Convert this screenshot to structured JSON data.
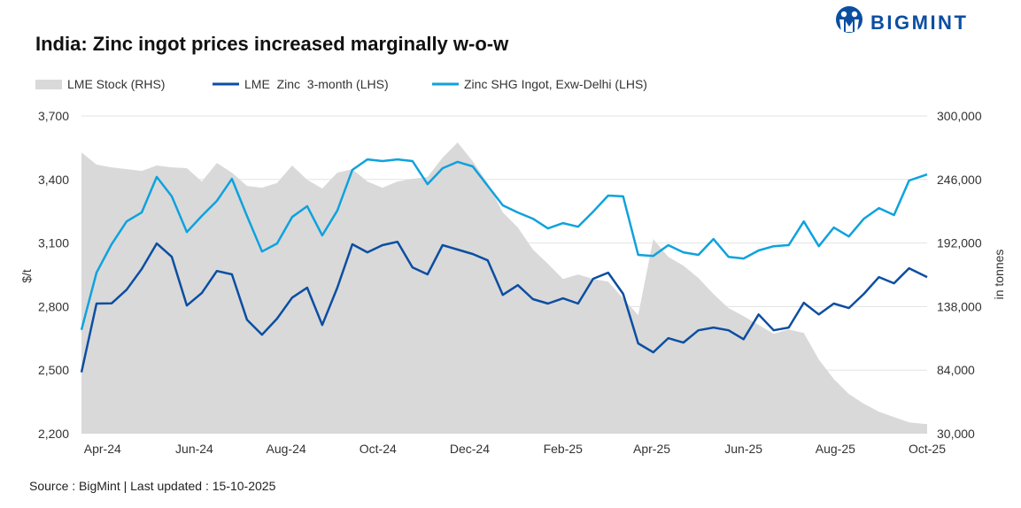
{
  "brand": {
    "logo_text": "BIGMINT",
    "color": "#0b4ea2"
  },
  "chart_data": {
    "type": "line+area",
    "title": "India: Zinc ingot prices increased marginally w-o-w",
    "source": "Source : BigMint | Last updated : 15-10-2025",
    "ylabel": "$/t",
    "y2label": "in tonnes",
    "ylim": [
      2200,
      3700
    ],
    "y2lim": [
      30000,
      300000
    ],
    "yticks": [
      "2,200",
      "2,500",
      "2,800",
      "3,100",
      "3,400",
      "3,700"
    ],
    "y2ticks": [
      "30,000",
      "84,000",
      "138,000",
      "192,000",
      "246,000",
      "300,000"
    ],
    "xlim": [
      "2024-04-01",
      "2025-10-15"
    ],
    "xticks": [
      {
        "date": "2024-04-15",
        "label": "Apr-24"
      },
      {
        "date": "2024-06-15",
        "label": "Jun-24"
      },
      {
        "date": "2024-08-15",
        "label": "Aug-24"
      },
      {
        "date": "2024-10-15",
        "label": "Oct-24"
      },
      {
        "date": "2024-12-15",
        "label": "Dec-24"
      },
      {
        "date": "2025-02-15",
        "label": "Feb-25"
      },
      {
        "date": "2025-04-15",
        "label": "Apr-25"
      },
      {
        "date": "2025-06-15",
        "label": "Jun-25"
      },
      {
        "date": "2025-08-15",
        "label": "Aug-25"
      },
      {
        "date": "2025-10-15",
        "label": "Oct-25"
      }
    ],
    "grid": true,
    "legend_position": "top-left",
    "x": [
      "2024-04-01",
      "2024-04-11",
      "2024-04-21",
      "2024-05-01",
      "2024-05-11",
      "2024-05-21",
      "2024-05-31",
      "2024-06-10",
      "2024-06-20",
      "2024-06-30",
      "2024-07-10",
      "2024-07-20",
      "2024-07-30",
      "2024-08-09",
      "2024-08-19",
      "2024-08-29",
      "2024-09-08",
      "2024-09-18",
      "2024-09-28",
      "2024-10-08",
      "2024-10-18",
      "2024-10-28",
      "2024-11-07",
      "2024-11-17",
      "2024-11-27",
      "2024-12-07",
      "2024-12-17",
      "2024-12-27",
      "2025-01-06",
      "2025-01-16",
      "2025-01-26",
      "2025-02-05",
      "2025-02-15",
      "2025-02-25",
      "2025-03-07",
      "2025-03-17",
      "2025-03-27",
      "2025-04-06",
      "2025-04-16",
      "2025-04-26",
      "2025-05-06",
      "2025-05-16",
      "2025-05-26",
      "2025-06-05",
      "2025-06-15",
      "2025-06-25",
      "2025-07-05",
      "2025-07-15",
      "2025-07-25",
      "2025-08-04",
      "2025-08-14",
      "2025-08-24",
      "2025-09-03",
      "2025-09-13",
      "2025-09-23",
      "2025-10-03",
      "2025-10-15"
    ],
    "series": [
      {
        "name": "LME Stock (RHS)",
        "axis": "right",
        "kind": "area",
        "color": "#d9d9d9",
        "values": [
          269000,
          258600,
          256300,
          254800,
          253300,
          257900,
          256300,
          255600,
          244300,
          260000,
          251800,
          240500,
          239000,
          243000,
          257900,
          245800,
          238300,
          251800,
          254800,
          244300,
          239000,
          244300,
          246600,
          248000,
          264600,
          277400,
          261600,
          242800,
          218000,
          205200,
          186400,
          174300,
          161500,
          165300,
          161500,
          159300,
          145000,
          130700,
          195400,
          180300,
          172800,
          162300,
          148700,
          136700,
          129900,
          122400,
          114900,
          118600,
          115600,
          93000,
          76500,
          63700,
          55400,
          48600,
          44100,
          39600,
          38100
        ]
      },
      {
        "name": "LME  Zinc  3-month (LHS)",
        "axis": "left",
        "kind": "line",
        "color": "#0b4ea2",
        "values": [
          2490,
          2814,
          2815,
          2880,
          2977,
          3098,
          3035,
          2805,
          2864,
          2968,
          2952,
          2738,
          2667,
          2743,
          2842,
          2889,
          2713,
          2889,
          3094,
          3056,
          3090,
          3106,
          2985,
          2952,
          3090,
          3069,
          3048,
          3018,
          2855,
          2901,
          2835,
          2814,
          2839,
          2814,
          2931,
          2960,
          2860,
          2626,
          2584,
          2651,
          2630,
          2688,
          2701,
          2688,
          2646,
          2763,
          2688,
          2701,
          2818,
          2763,
          2814,
          2793,
          2860,
          2939,
          2910,
          2981,
          2939
        ]
      },
      {
        "name": "Zinc SHG Ingot, Exw-Delhi (LHS)",
        "axis": "left",
        "kind": "line",
        "color": "#0ea2de",
        "values": [
          2690,
          2960,
          3094,
          3202,
          3244,
          3412,
          3320,
          3152,
          3228,
          3299,
          3403,
          3228,
          3060,
          3098,
          3223,
          3274,
          3136,
          3253,
          3445,
          3495,
          3487,
          3495,
          3487,
          3378,
          3453,
          3483,
          3462,
          3370,
          3278,
          3244,
          3215,
          3169,
          3194,
          3177,
          3248,
          3324,
          3320,
          3044,
          3039,
          3090,
          3056,
          3044,
          3119,
          3035,
          3027,
          3065,
          3085,
          3090,
          3202,
          3085,
          3173,
          3131,
          3215,
          3265,
          3232,
          3395,
          3424
        ]
      }
    ]
  }
}
